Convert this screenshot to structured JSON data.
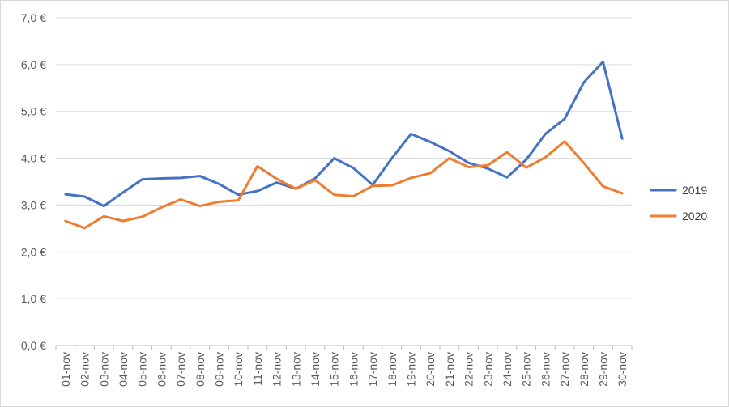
{
  "chart_data": {
    "type": "line",
    "title": "",
    "xlabel": "",
    "ylabel": "",
    "categories": [
      "01-nov",
      "02-nov",
      "03-nov",
      "04-nov",
      "05-nov",
      "06-nov",
      "07-nov",
      "08-nov",
      "09-nov",
      "10-nov",
      "11-nov",
      "12-nov",
      "13-nov",
      "14-nov",
      "15-nov",
      "16-nov",
      "17-nov",
      "18-nov",
      "19-nov",
      "20-nov",
      "21-nov",
      "22-nov",
      "23-nov",
      "24-nov",
      "25-nov",
      "26-nov",
      "27-nov",
      "28-nov",
      "29-nov",
      "30-nov"
    ],
    "ylim": [
      0,
      7
    ],
    "ytick_values": [
      0,
      1,
      2,
      3,
      4,
      5,
      6,
      7
    ],
    "ytick_labels": [
      "0,0 €",
      "1,0 €",
      "2,0 €",
      "3,0 €",
      "4,0 €",
      "5,0 €",
      "6,0 €",
      "7,0 €"
    ],
    "grid": true,
    "legend_position": "right",
    "series": [
      {
        "name": "2019",
        "color": "#4472C4",
        "values": [
          3.23,
          3.18,
          2.98,
          3.27,
          3.55,
          3.57,
          3.58,
          3.62,
          3.45,
          3.22,
          3.3,
          3.48,
          3.35,
          3.57,
          4.0,
          3.79,
          3.43,
          4.0,
          4.52,
          4.35,
          4.15,
          3.9,
          3.78,
          3.59,
          3.97,
          4.52,
          4.84,
          5.62,
          6.06,
          4.42
        ]
      },
      {
        "name": "2020",
        "color": "#ED7D31",
        "values": [
          2.66,
          2.51,
          2.76,
          2.66,
          2.75,
          2.95,
          3.12,
          2.98,
          3.07,
          3.1,
          3.83,
          3.56,
          3.35,
          3.53,
          3.22,
          3.19,
          3.41,
          3.42,
          3.58,
          3.68,
          4.0,
          3.81,
          3.85,
          4.13,
          3.8,
          4.02,
          4.36,
          3.9,
          3.4,
          3.25
        ]
      }
    ]
  }
}
